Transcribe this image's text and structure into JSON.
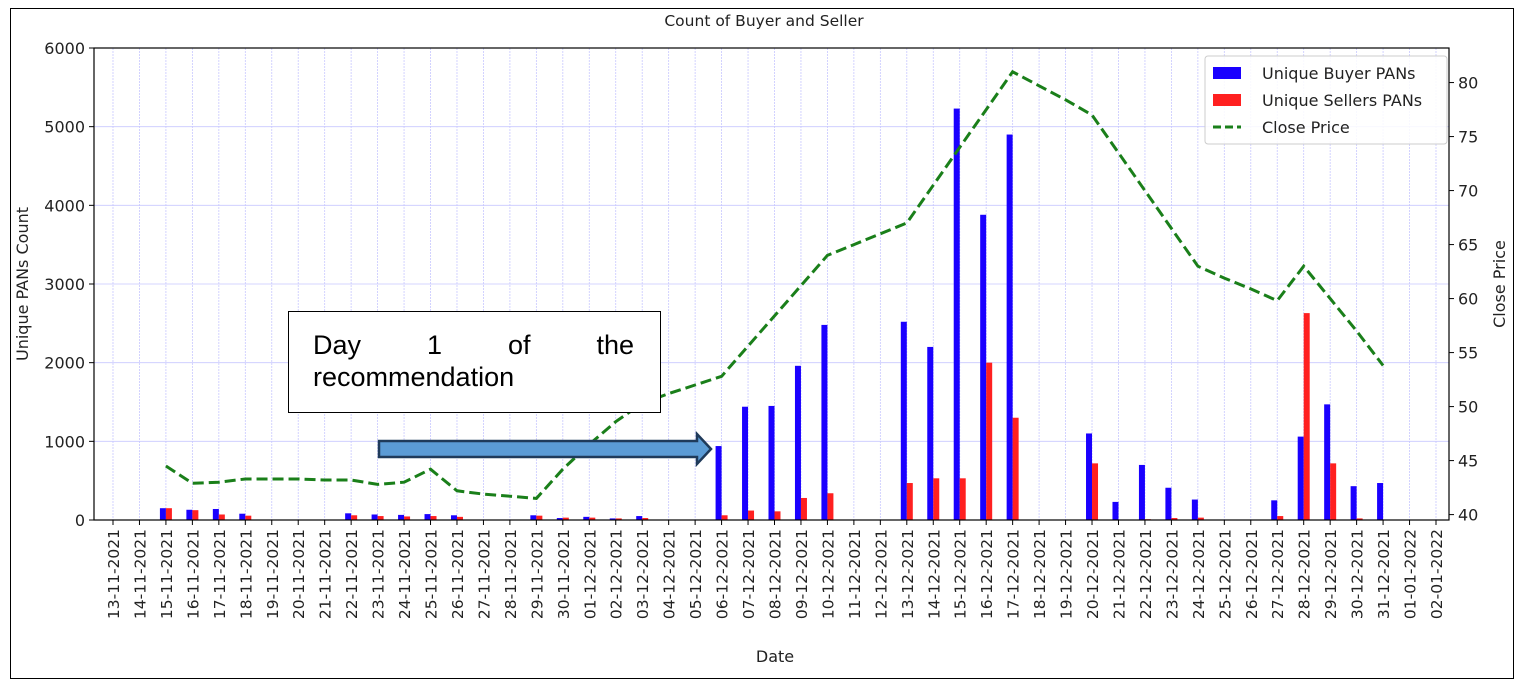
{
  "chart_data": {
    "type": "bar",
    "title": "Count of Buyer and Seller",
    "xlabel": "Date",
    "ylabel": "Unique PANs Count",
    "y2label": "Close Price",
    "ylim": [
      0,
      6000
    ],
    "y2lim": [
      39.5,
      83.2
    ],
    "yticks": [
      0,
      1000,
      2000,
      3000,
      4000,
      5000,
      6000
    ],
    "y2ticks": [
      40,
      45,
      50,
      55,
      60,
      65,
      70,
      75,
      80
    ],
    "grid": true,
    "legend_position": "top-right",
    "categories": [
      "13-11-2021",
      "14-11-2021",
      "15-11-2021",
      "16-11-2021",
      "17-11-2021",
      "18-11-2021",
      "19-11-2021",
      "20-11-2021",
      "21-11-2021",
      "22-11-2021",
      "23-11-2021",
      "24-11-2021",
      "25-11-2021",
      "26-11-2021",
      "27-11-2021",
      "28-11-2021",
      "29-11-2021",
      "30-11-2021",
      "01-12-2021",
      "02-12-2021",
      "03-12-2021",
      "04-12-2021",
      "05-12-2021",
      "06-12-2021",
      "07-12-2021",
      "08-12-2021",
      "09-12-2021",
      "10-12-2021",
      "11-12-2021",
      "12-12-2021",
      "13-12-2021",
      "14-12-2021",
      "15-12-2021",
      "16-12-2021",
      "17-12-2021",
      "18-12-2021",
      "19-12-2021",
      "20-12-2021",
      "21-12-2021",
      "22-12-2021",
      "23-12-2021",
      "24-12-2021",
      "25-12-2021",
      "26-12-2021",
      "27-12-2021",
      "28-12-2021",
      "29-12-2021",
      "30-12-2021",
      "31-12-2021",
      "01-01-2022",
      "02-01-2022"
    ],
    "series": [
      {
        "name": "Unique Buyer PANs",
        "type": "bar",
        "axis": "left",
        "color": "#1a00ff",
        "values": [
          null,
          null,
          150,
          130,
          140,
          80,
          null,
          null,
          null,
          85,
          70,
          65,
          75,
          60,
          null,
          null,
          60,
          25,
          40,
          20,
          50,
          null,
          null,
          940,
          1440,
          1450,
          1960,
          2480,
          null,
          null,
          2520,
          2200,
          5230,
          3880,
          4900,
          null,
          null,
          1100,
          230,
          700,
          410,
          260,
          null,
          null,
          250,
          1060,
          1470,
          430,
          470,
          null,
          null
        ]
      },
      {
        "name": "Unique Sellers PANs",
        "type": "bar",
        "axis": "left",
        "color": "#ff2020",
        "values": [
          null,
          null,
          150,
          125,
          70,
          55,
          null,
          null,
          null,
          60,
          50,
          45,
          50,
          40,
          null,
          null,
          55,
          30,
          30,
          20,
          25,
          null,
          null,
          60,
          120,
          110,
          280,
          340,
          null,
          null,
          470,
          530,
          530,
          2000,
          1300,
          null,
          null,
          720,
          5,
          10,
          25,
          30,
          null,
          null,
          50,
          2630,
          720,
          20,
          5,
          null,
          null
        ]
      },
      {
        "name": "Close Price",
        "type": "line",
        "style": "dashed",
        "axis": "right",
        "color": "#1a7f1a",
        "values": [
          null,
          null,
          44.5,
          42.9,
          43.0,
          43.3,
          43.3,
          43.3,
          43.2,
          43.2,
          42.8,
          43.0,
          44.2,
          42.2,
          41.9,
          41.7,
          41.5,
          44.2,
          46.5,
          48.6,
          50.3,
          51.2,
          52.0,
          52.8,
          55.6,
          58.4,
          61.2,
          64.0,
          65.0,
          66.0,
          67.0,
          70.5,
          74.0,
          77.5,
          81.0,
          79.7,
          78.4,
          77.0,
          73.5,
          70.0,
          66.5,
          63.0,
          61.9,
          60.9,
          59.8,
          63.0,
          60.0,
          57.0,
          53.8,
          null,
          null
        ]
      }
    ]
  },
  "annotation": {
    "text_line1": [
      "Day",
      "1",
      "of",
      "the"
    ],
    "text_line2": "recommendation",
    "arrow_color": "#5b9bd5"
  }
}
